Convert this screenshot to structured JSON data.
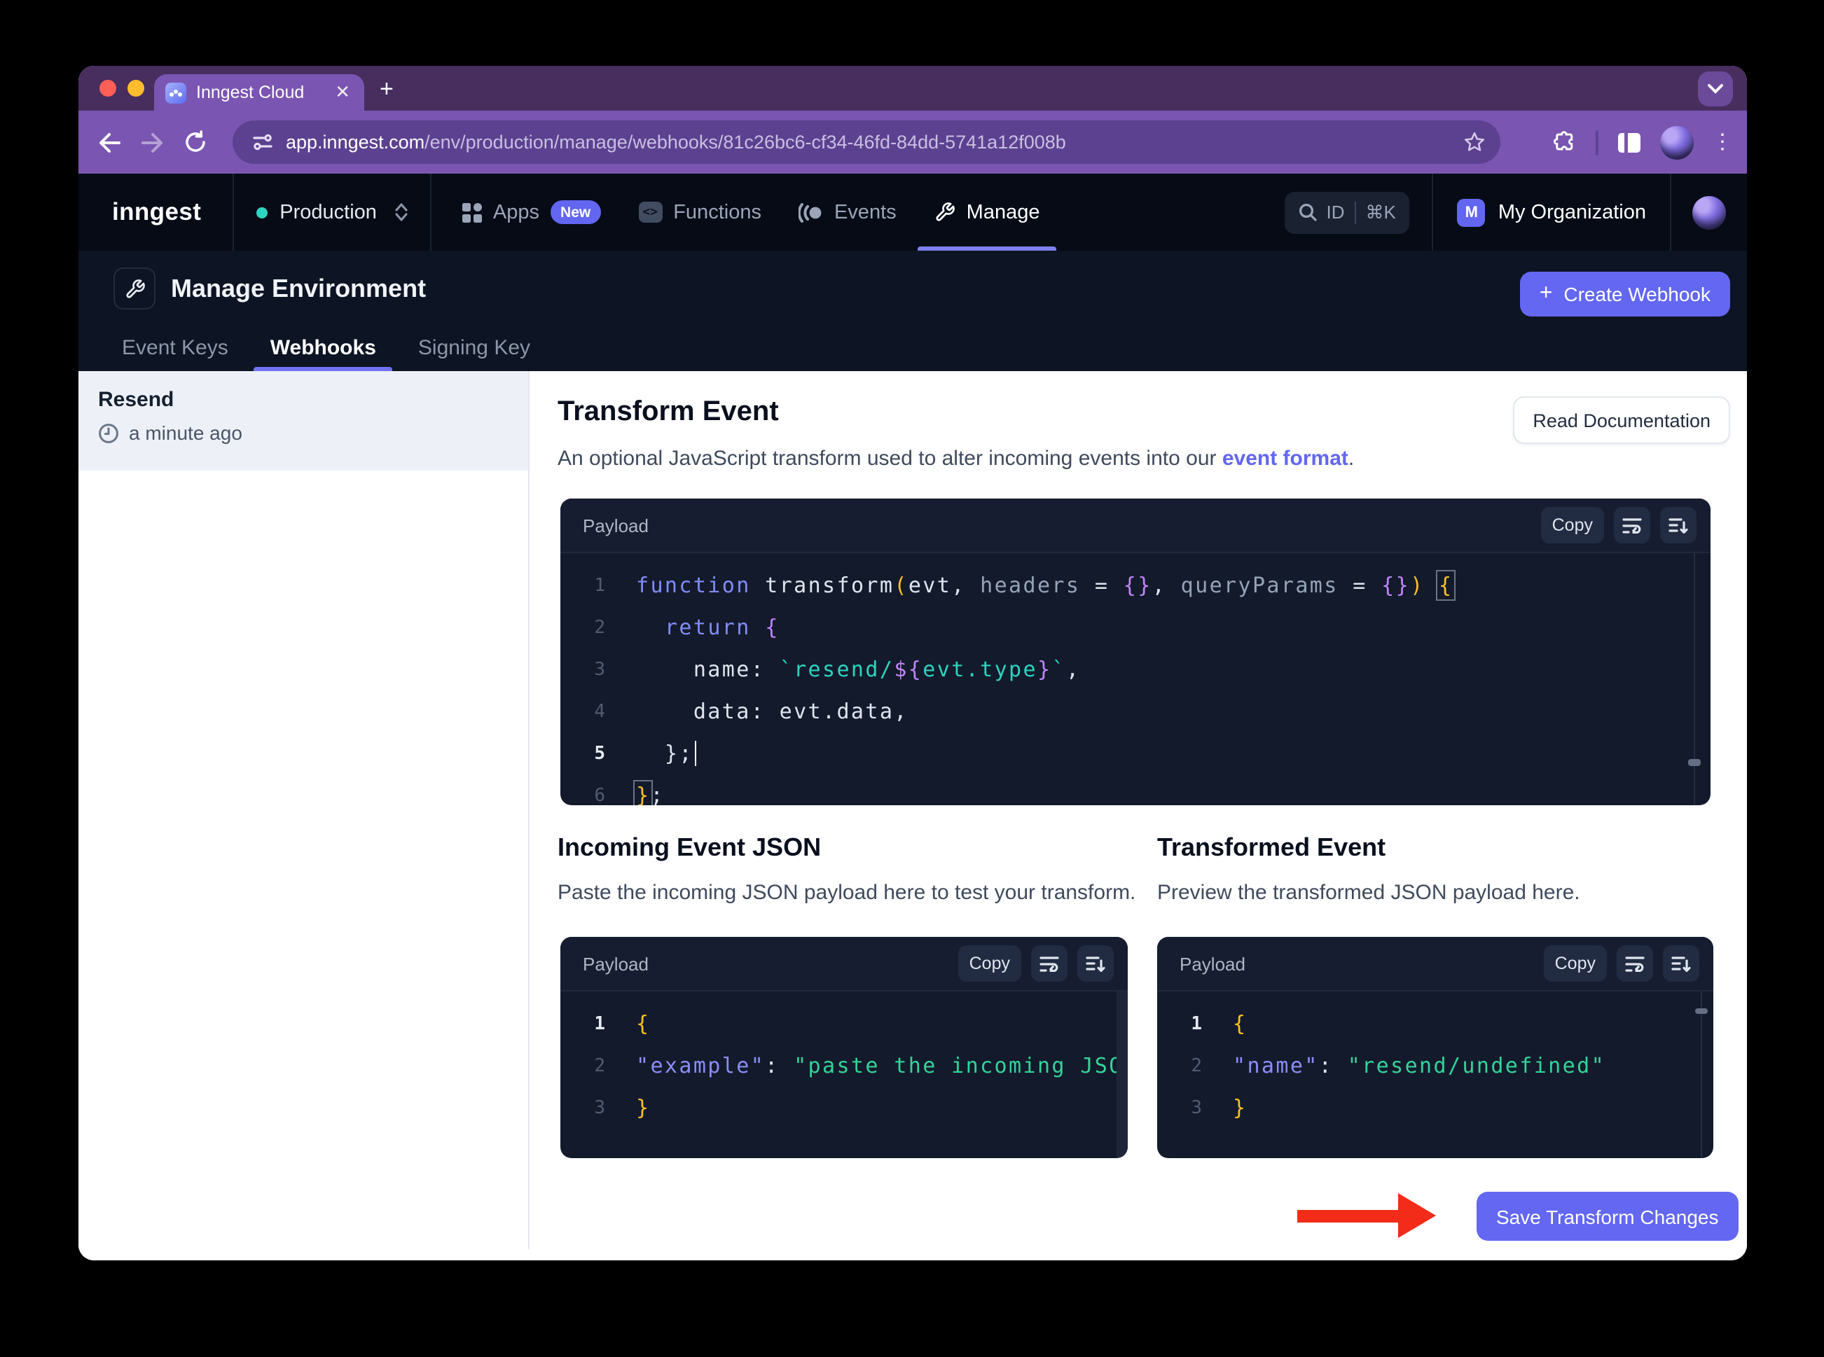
{
  "browser": {
    "tab_title": "Inngest Cloud",
    "close_glyph": "✕",
    "new_tab_glyph": "+",
    "menu_glyph": "⋮",
    "url_domain": "app.inngest.com",
    "url_path": "/env/production/manage/webhooks/81c26bc6-cf34-46fd-84dd-5741a12f008b"
  },
  "nav": {
    "logo": "inngest",
    "env_label": "Production",
    "apps_label": "Apps",
    "apps_badge": "New",
    "functions_label": "Functions",
    "functions_glyph": "<>",
    "events_label": "Events",
    "manage_label": "Manage",
    "search_id": "ID",
    "search_shortcut": "⌘K",
    "org_initial": "M",
    "org_name": "My Organization"
  },
  "header": {
    "title": "Manage Environment",
    "tabs": [
      {
        "label": "Event Keys"
      },
      {
        "label": "Webhooks"
      },
      {
        "label": "Signing Key"
      }
    ],
    "create_button": "Create Webhook",
    "plus_glyph": "+"
  },
  "sidebar": {
    "webhook_name": "Resend",
    "last_updated": "a minute ago"
  },
  "transform": {
    "title": "Transform Event",
    "description_prefix": "An optional JavaScript transform used to alter incoming events into our ",
    "description_link": "event format",
    "description_suffix": ".",
    "read_docs": "Read Documentation"
  },
  "incoming": {
    "title": "Incoming Event JSON",
    "description": "Paste the incoming JSON payload here to test your transform."
  },
  "transformed": {
    "title": "Transformed Event",
    "description": "Preview the transformed JSON payload here."
  },
  "panel": {
    "payload_label": "Payload",
    "copy_label": "Copy"
  },
  "save_button": "Save Transform Changes",
  "colors": {
    "accent": "#6366f1",
    "env_dot": "#2dd4bf",
    "arrow_red": "#f22c18"
  },
  "code": {
    "editor": {
      "lines": [
        {
          "n": "1",
          "active": false,
          "tokens": [
            [
              "kw",
              "function"
            ],
            [
              "pl",
              " transform"
            ],
            [
              "yl",
              "("
            ],
            [
              "pl",
              "evt, "
            ],
            [
              "pm",
              "headers"
            ],
            [
              "pl",
              " = "
            ],
            [
              "br",
              "{}"
            ],
            [
              "pl",
              ", "
            ],
            [
              "pm",
              "queryParams"
            ],
            [
              "pl",
              " = "
            ],
            [
              "br",
              "{}"
            ],
            [
              "yl",
              ")"
            ],
            [
              "pl",
              " "
            ],
            [
              "mb",
              "{"
            ]
          ]
        },
        {
          "n": "2",
          "active": false,
          "tokens": [
            [
              "pl",
              "  "
            ],
            [
              "kw",
              "return"
            ],
            [
              "pl",
              " "
            ],
            [
              "br",
              "{"
            ]
          ]
        },
        {
          "n": "3",
          "active": false,
          "tokens": [
            [
              "pl",
              "    name: "
            ],
            [
              "st",
              "`resend/"
            ],
            [
              "br",
              "${"
            ],
            [
              "st",
              "evt.type"
            ],
            [
              "br",
              "}"
            ],
            [
              "st",
              "`"
            ],
            [
              "pl",
              ","
            ]
          ]
        },
        {
          "n": "4",
          "active": false,
          "tokens": [
            [
              "pl",
              "    data: evt.data,"
            ]
          ]
        },
        {
          "n": "5",
          "active": true,
          "tokens": [
            [
              "pl",
              "  };"
            ],
            [
              "cur",
              ""
            ]
          ]
        },
        {
          "n": "6",
          "active": false,
          "tokens": [
            [
              "mb",
              "}"
            ],
            [
              "pl",
              ";"
            ]
          ]
        }
      ]
    },
    "incoming": {
      "lines": [
        {
          "n": "1",
          "active": true,
          "tokens": [
            [
              "yl",
              "{"
            ]
          ]
        },
        {
          "n": "2",
          "active": false,
          "tokens": [
            [
              "ky",
              "\"example\""
            ],
            [
              "pl",
              ": "
            ],
            [
              "sg",
              "\"paste the incoming JSON paylo"
            ]
          ]
        },
        {
          "n": "3",
          "active": false,
          "tokens": [
            [
              "yl",
              "}"
            ]
          ]
        }
      ]
    },
    "transformed": {
      "lines": [
        {
          "n": "1",
          "active": true,
          "tokens": [
            [
              "yl",
              "{"
            ]
          ]
        },
        {
          "n": "2",
          "active": false,
          "tokens": [
            [
              "ky",
              "\"name\""
            ],
            [
              "pl",
              ": "
            ],
            [
              "sg",
              "\"resend/undefined\""
            ]
          ]
        },
        {
          "n": "3",
          "active": false,
          "tokens": [
            [
              "yl",
              "}"
            ]
          ]
        }
      ]
    }
  }
}
